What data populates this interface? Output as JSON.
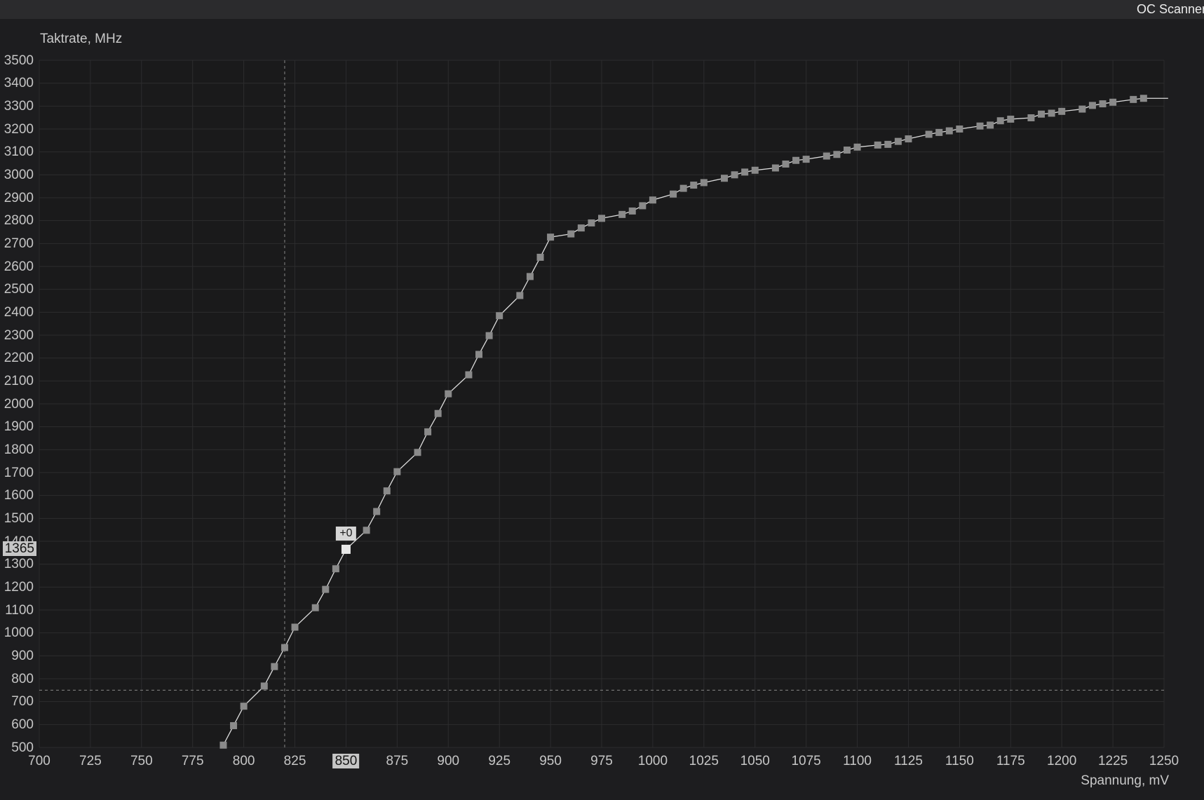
{
  "window": {
    "title": "OC Scanner"
  },
  "colors": {
    "background": "#1d1d1f",
    "titlebar": "#2b2b2d",
    "plot_bg": "#1a1a1b",
    "grid": "#2c2c2e",
    "axis_text": "#c6c6c6",
    "curve": "#dcdcdc",
    "marker": "#8a8a8a",
    "marker_selected": "#e8e8e8",
    "highlight_bg": "#c6c6c6",
    "highlight_text": "#141414",
    "crosshair": "#878787",
    "tooltip_bg": "#d6d6d6",
    "tooltip_text": "#1b1b1b"
  },
  "chart_data": {
    "type": "line",
    "title": "",
    "ylabel": "Taktrate, MHz",
    "xlabel": "Spannung, mV",
    "xlim": [
      700,
      1250
    ],
    "ylim": [
      500,
      3500
    ],
    "x_tick_step": 25,
    "y_tick_step": 100,
    "grid": true,
    "legend": "none",
    "series": [
      {
        "name": "voltage-frequency-curve",
        "points": [
          [
            790,
            510
          ],
          [
            795,
            595
          ],
          [
            800,
            680
          ],
          [
            810,
            768
          ],
          [
            815,
            853
          ],
          [
            820,
            936
          ],
          [
            825,
            1025
          ],
          [
            835,
            1110
          ],
          [
            840,
            1190
          ],
          [
            845,
            1280
          ],
          [
            850,
            1365
          ],
          [
            860,
            1448
          ],
          [
            865,
            1530
          ],
          [
            870,
            1620
          ],
          [
            875,
            1704
          ],
          [
            885,
            1788
          ],
          [
            890,
            1878
          ],
          [
            895,
            1958
          ],
          [
            900,
            2044
          ],
          [
            910,
            2127
          ],
          [
            915,
            2216
          ],
          [
            920,
            2298
          ],
          [
            925,
            2385
          ],
          [
            935,
            2473
          ],
          [
            940,
            2556
          ],
          [
            945,
            2640
          ],
          [
            950,
            2728
          ],
          [
            960,
            2742
          ],
          [
            965,
            2768
          ],
          [
            970,
            2790
          ],
          [
            975,
            2810
          ],
          [
            985,
            2827
          ],
          [
            990,
            2842
          ],
          [
            995,
            2865
          ],
          [
            1000,
            2890
          ],
          [
            1010,
            2916
          ],
          [
            1015,
            2941
          ],
          [
            1020,
            2955
          ],
          [
            1025,
            2966
          ],
          [
            1035,
            2985
          ],
          [
            1040,
            3000
          ],
          [
            1045,
            3012
          ],
          [
            1050,
            3020
          ],
          [
            1060,
            3030
          ],
          [
            1065,
            3047
          ],
          [
            1070,
            3063
          ],
          [
            1075,
            3068
          ],
          [
            1085,
            3082
          ],
          [
            1090,
            3089
          ],
          [
            1095,
            3108
          ],
          [
            1100,
            3121
          ],
          [
            1110,
            3130
          ],
          [
            1115,
            3133
          ],
          [
            1120,
            3146
          ],
          [
            1125,
            3157
          ],
          [
            1135,
            3177
          ],
          [
            1140,
            3185
          ],
          [
            1145,
            3192
          ],
          [
            1150,
            3200
          ],
          [
            1160,
            3213
          ],
          [
            1165,
            3217
          ],
          [
            1170,
            3236
          ],
          [
            1175,
            3243
          ],
          [
            1185,
            3249
          ],
          [
            1190,
            3265
          ],
          [
            1195,
            3269
          ],
          [
            1200,
            3277
          ],
          [
            1210,
            3287
          ],
          [
            1215,
            3303
          ],
          [
            1220,
            3310
          ],
          [
            1225,
            3317
          ],
          [
            1235,
            3329
          ],
          [
            1240,
            3334
          ]
        ]
      }
    ],
    "line_end": [
      1252,
      3334
    ],
    "selected_point": {
      "x": 850,
      "y": 1365,
      "offset_label": "+0"
    },
    "crosshair": {
      "x": 820,
      "y": 750
    }
  }
}
